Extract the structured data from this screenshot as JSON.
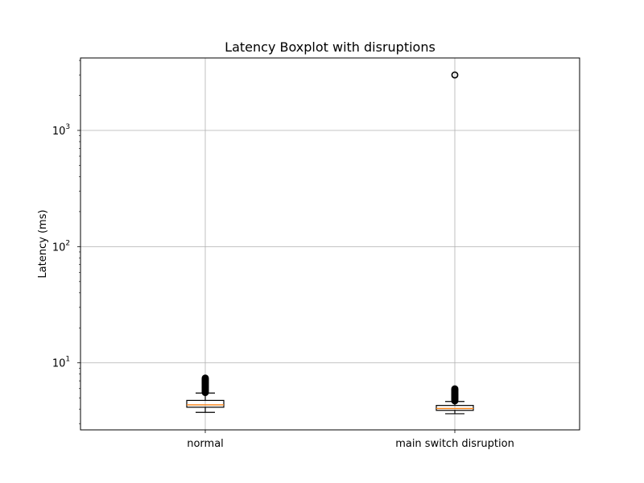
{
  "chart_data": {
    "type": "boxplot",
    "title": "Latency Boxplot with disruptions",
    "xlabel": "",
    "ylabel": "Latency (ms)",
    "yscale": "log",
    "ylim": [
      2.65,
      4200
    ],
    "yticks": [
      {
        "value": 10,
        "base": "10",
        "exp": "1"
      },
      {
        "value": 100,
        "base": "10",
        "exp": "2"
      },
      {
        "value": 1000,
        "base": "10",
        "exp": "3"
      }
    ],
    "grid": true,
    "categories": [
      "normal",
      "main switch disruption"
    ],
    "boxes": [
      {
        "name": "normal",
        "whisker_low": 3.75,
        "q1": 4.15,
        "median": 4.35,
        "q3": 4.75,
        "whisker_high": 5.5,
        "fliers": [
          5.55,
          5.62,
          5.7,
          5.78,
          5.85,
          5.92,
          6.0,
          6.08,
          6.15,
          6.22,
          6.3,
          6.38,
          6.45,
          6.52,
          6.6,
          6.68,
          6.75,
          6.82,
          6.9,
          6.98,
          7.05,
          7.12,
          7.2,
          7.3,
          7.4
        ]
      },
      {
        "name": "main switch disruption",
        "whisker_low": 3.65,
        "q1": 3.9,
        "median": 4.05,
        "q3": 4.3,
        "whisker_high": 4.65,
        "fliers": [
          4.7,
          4.78,
          4.86,
          4.94,
          5.02,
          5.1,
          5.18,
          5.26,
          5.34,
          5.42,
          5.5,
          5.58,
          5.66,
          5.74,
          5.82,
          5.9,
          5.98,
          3000
        ]
      }
    ],
    "colors": {
      "box": "#000000",
      "median": "#ff7f0e",
      "grid": "#b0b0b0",
      "flier": "#000000"
    }
  }
}
